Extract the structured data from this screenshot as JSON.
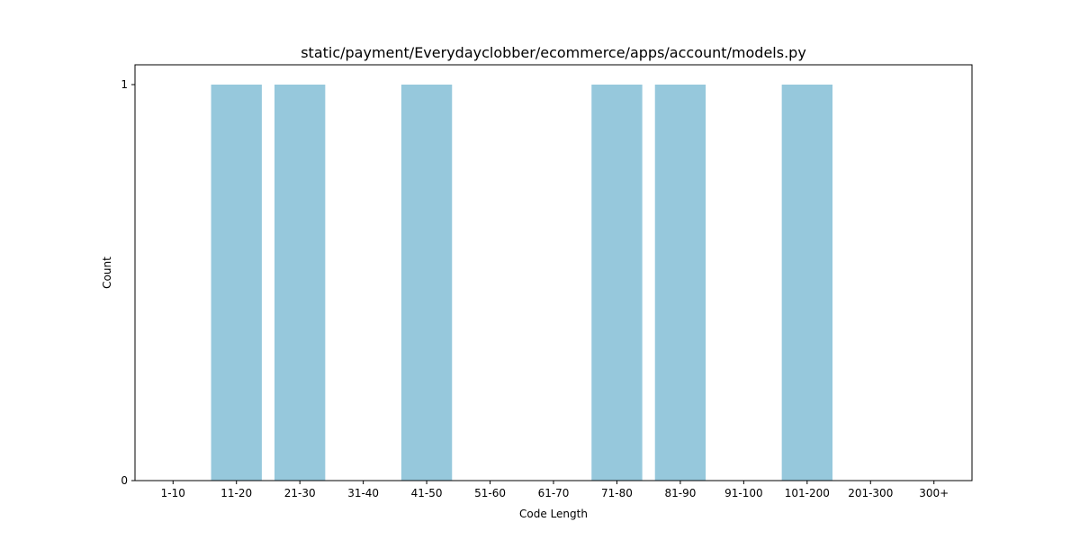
{
  "chart_data": {
    "type": "bar",
    "title": "static/payment/Everydayclobber/ecommerce/apps/account/models.py",
    "xlabel": "Code Length",
    "ylabel": "Count",
    "categories": [
      "1-10",
      "11-20",
      "21-30",
      "31-40",
      "41-50",
      "51-60",
      "61-70",
      "71-80",
      "81-90",
      "91-100",
      "101-200",
      "201-300",
      "300+"
    ],
    "values": [
      0,
      1,
      1,
      0,
      1,
      0,
      0,
      1,
      1,
      0,
      1,
      0,
      0
    ],
    "ylim": [
      0,
      1
    ],
    "yticks": [
      0,
      1
    ],
    "grid": false,
    "bar_color": "#96c8dc"
  }
}
